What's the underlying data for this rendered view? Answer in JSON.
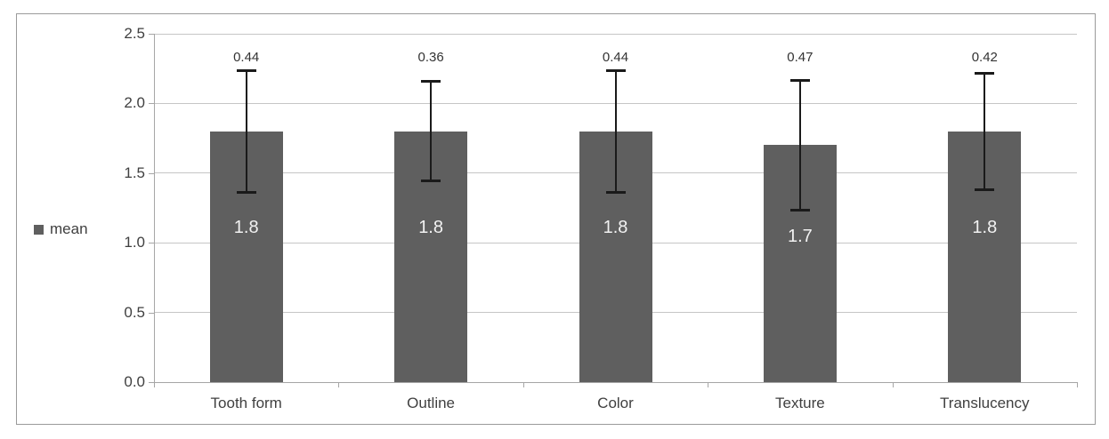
{
  "frame": {
    "border_color": "#9a9a9a",
    "background": "#ffffff"
  },
  "legend": {
    "label": "mean",
    "swatch_color": "#5f5f5f",
    "position": "left-middle"
  },
  "chart_data": {
    "type": "bar",
    "title": "",
    "xlabel": "",
    "ylabel": "",
    "categories": [
      "Tooth form",
      "Outline",
      "Color",
      "Texture",
      "Translucency"
    ],
    "series": [
      {
        "name": "mean",
        "color": "#5f5f5f",
        "values": [
          1.8,
          1.8,
          1.8,
          1.7,
          1.8
        ],
        "labels": [
          "1.8",
          "1.8",
          "1.8",
          "1.7",
          "1.8"
        ]
      }
    ],
    "error_bars": {
      "values": [
        0.44,
        0.36,
        0.44,
        0.47,
        0.42
      ],
      "labels": [
        "0.44",
        "0.36",
        "0.44",
        "0.47",
        "0.42"
      ],
      "color": "#1a1a1a"
    },
    "y_axis": {
      "min": 0,
      "max": 2.5,
      "tick_step": 0.5,
      "ticks": [
        "0.0",
        "0.5",
        "1.0",
        "1.5",
        "2.0",
        "2.5"
      ]
    },
    "grid": true,
    "legend_position": "left",
    "colors": {
      "gridline": "#c6c6c6",
      "axis": "#a6a6a6",
      "tick_text": "#404040",
      "bar_label_text": "#f2f2f2",
      "error_label_text": "#333333"
    }
  }
}
